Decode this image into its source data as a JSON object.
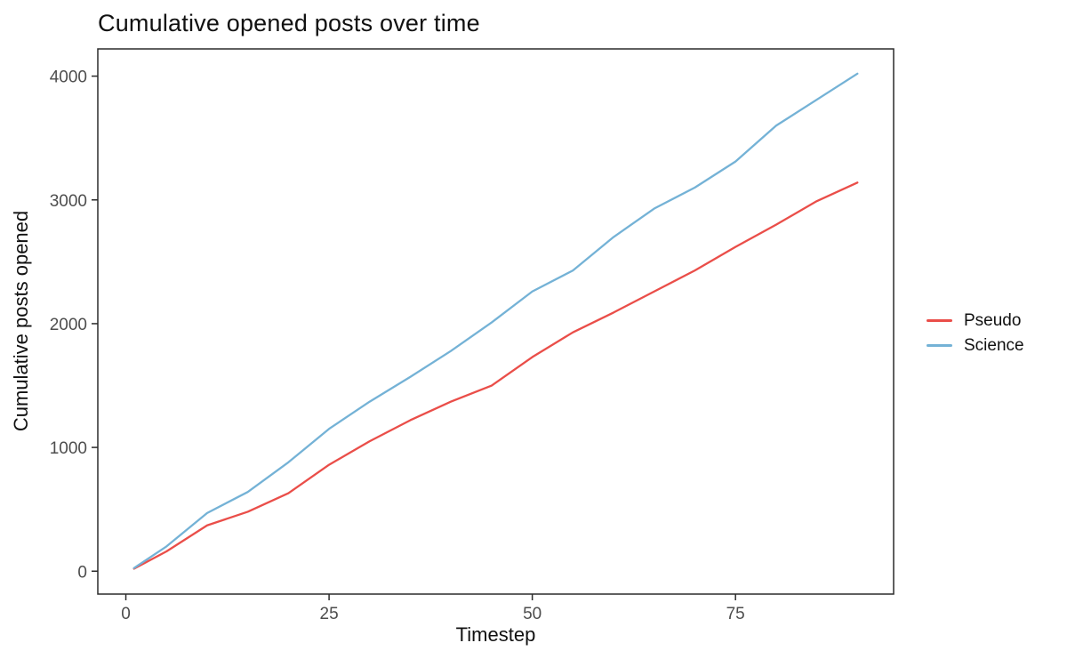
{
  "chart_data": {
    "type": "line",
    "title": "Cumulative opened posts over time",
    "xlabel": "Timestep",
    "ylabel": "Cumulative posts opened",
    "x": [
      1,
      5,
      10,
      15,
      20,
      25,
      30,
      35,
      40,
      45,
      50,
      55,
      60,
      65,
      70,
      75,
      80,
      85,
      90
    ],
    "series": [
      {
        "name": "Pseudo",
        "color": "#EA4E49",
        "values": [
          20,
          160,
          370,
          480,
          630,
          860,
          1050,
          1220,
          1370,
          1500,
          1730,
          1930,
          2090,
          2260,
          2430,
          2620,
          2800,
          2990,
          3140
        ]
      },
      {
        "name": "Science",
        "color": "#74B2D6",
        "values": [
          25,
          200,
          470,
          640,
          880,
          1150,
          1370,
          1570,
          1780,
          2010,
          2260,
          2430,
          2700,
          2930,
          3100,
          3310,
          3600,
          3810,
          4020
        ]
      }
    ],
    "xlim": [
      -3.45,
      94.45
    ],
    "ylim": [
      -185,
      4220
    ],
    "xticks": [
      0,
      25,
      50,
      75
    ],
    "yticks": [
      0,
      1000,
      2000,
      3000,
      4000
    ],
    "grid": false,
    "legend_position": "right",
    "colors": {
      "panel_border": "#2b2b2b",
      "tick_mark": "#2b2b2b",
      "tick_label": "#4d4d4d",
      "text": "#111111",
      "background": "#ffffff"
    }
  }
}
